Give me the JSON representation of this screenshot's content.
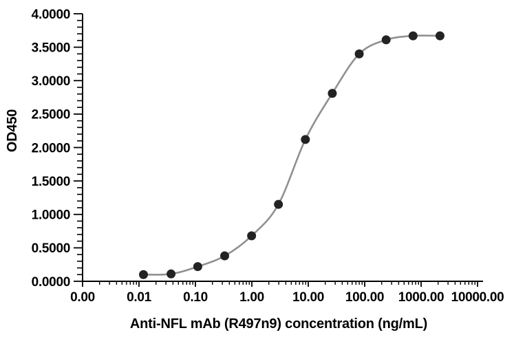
{
  "chart_data": {
    "type": "line",
    "title": "",
    "xlabel": "Anti-NFL mAb (R497n9) concentration (ng/mL)",
    "ylabel": "OD450",
    "x_scale": "log",
    "xlim": [
      0.001,
      10000
    ],
    "ylim": [
      0,
      4
    ],
    "grid": false,
    "legend_position": "none",
    "x_ticks": [
      {
        "value": 0.001,
        "label": "0.00"
      },
      {
        "value": 0.01,
        "label": "0.01"
      },
      {
        "value": 0.1,
        "label": "0.10"
      },
      {
        "value": 1,
        "label": "1.00"
      },
      {
        "value": 10,
        "label": "10.00"
      },
      {
        "value": 100,
        "label": "100.00"
      },
      {
        "value": 1000,
        "label": "1000.00"
      },
      {
        "value": 10000,
        "label": "10000.00"
      }
    ],
    "y_ticks": [
      {
        "value": 0.0,
        "label": "0.0000"
      },
      {
        "value": 0.5,
        "label": "0.5000"
      },
      {
        "value": 1.0,
        "label": "1.0000"
      },
      {
        "value": 1.5,
        "label": "1.5000"
      },
      {
        "value": 2.0,
        "label": "2.0000"
      },
      {
        "value": 2.5,
        "label": "2.5000"
      },
      {
        "value": 3.0,
        "label": "3.0000"
      },
      {
        "value": 3.5,
        "label": "3.5000"
      },
      {
        "value": 4.0,
        "label": "4.0000"
      }
    ],
    "y_minor_step": 0.1,
    "series": [
      {
        "x": [
          0.012,
          0.037,
          0.11,
          0.33,
          0.99,
          2.96,
          8.89,
          26.67,
          80,
          240,
          720,
          2160
        ],
        "y": [
          0.1,
          0.11,
          0.22,
          0.38,
          0.68,
          1.15,
          2.12,
          2.81,
          3.4,
          3.61,
          3.67,
          3.67
        ]
      }
    ],
    "colors": {
      "line": "#909090",
      "marker": "#232323",
      "axis": "#000000",
      "text": "#000000",
      "background": "#ffffff"
    }
  }
}
